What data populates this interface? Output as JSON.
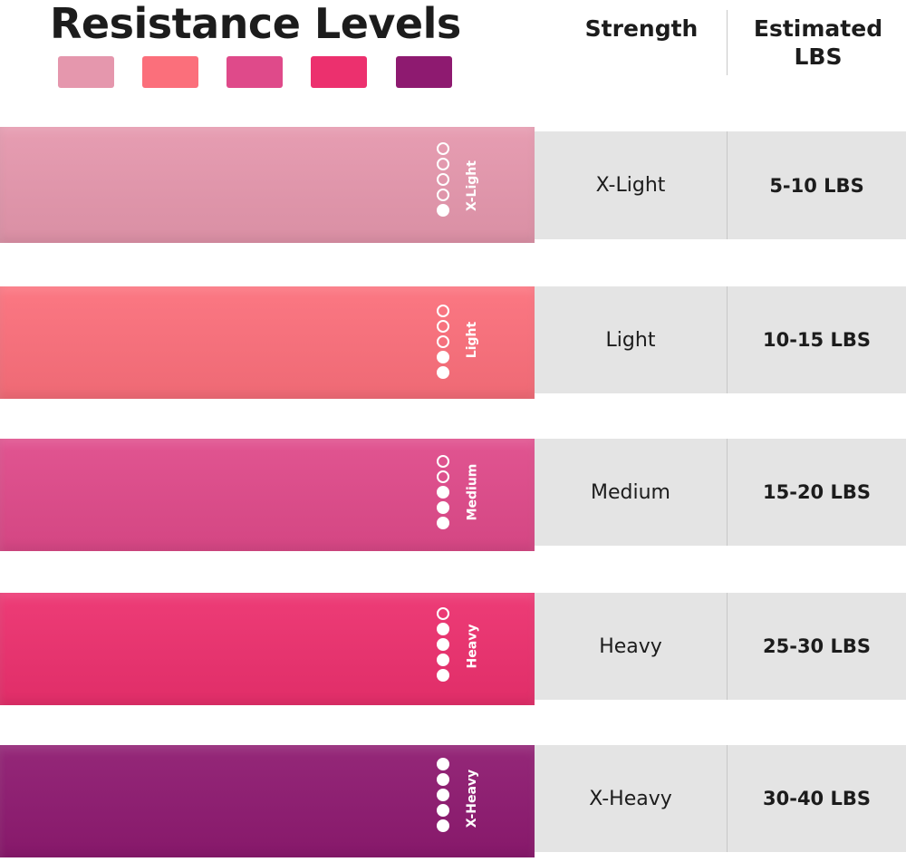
{
  "title": "Resistance Levels",
  "headers": {
    "strength": "Strength",
    "lbs_line1": "Estimated",
    "lbs_line2": "LBS"
  },
  "swatch_colors": [
    "#e597ad",
    "#fb6f7b",
    "#df4a8a",
    "#ec306e",
    "#8e1a70"
  ],
  "bands": [
    {
      "band_label": "X-Light",
      "strength": "X-Light",
      "lbs": "5-10  LBS",
      "color": "#e597ad",
      "level": 1
    },
    {
      "band_label": "Light",
      "strength": "Light",
      "lbs": "10-15 LBS",
      "color": "#fb6f7b",
      "level": 2
    },
    {
      "band_label": "Medium",
      "strength": "Medium",
      "lbs": "15-20 LBS",
      "color": "#df4a8a",
      "level": 3
    },
    {
      "band_label": "Heavy",
      "strength": "Heavy",
      "lbs": "25-30 LBS",
      "color": "#ec306e",
      "level": 4
    },
    {
      "band_label": "X-Heavy",
      "strength": "X-Heavy",
      "lbs": "30-40 LBS",
      "color": "#8e1a70",
      "level": 5
    }
  ]
}
